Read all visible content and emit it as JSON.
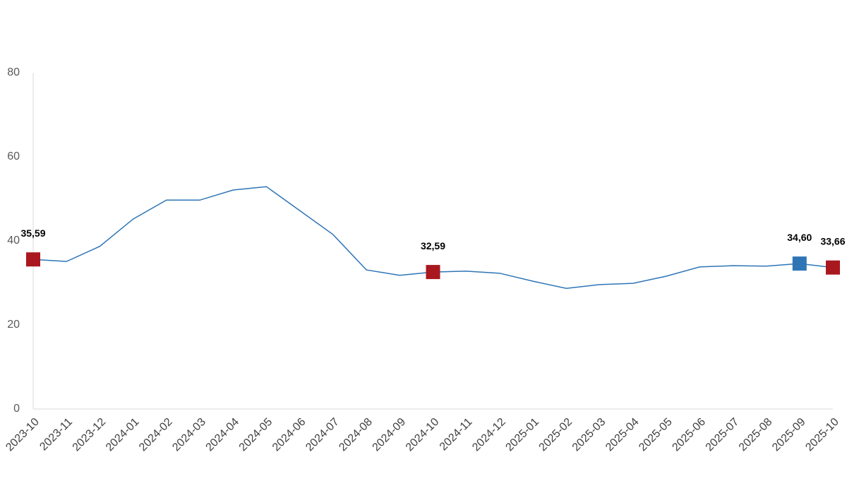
{
  "chart_data": {
    "type": "line",
    "categories": [
      "2023-10",
      "2023-11",
      "2023-12",
      "2024-01",
      "2024-02",
      "2024-03",
      "2024-04",
      "2024-05",
      "2024-06",
      "2024-07",
      "2024-08",
      "2024-09",
      "2024-10",
      "2024-11",
      "2024-12",
      "2025-01",
      "2025-02",
      "2025-03",
      "2025-04",
      "2025-05",
      "2025-06",
      "2025-07",
      "2025-08",
      "2025-09",
      "2025-10"
    ],
    "values": [
      35.59,
      35.1,
      38.7,
      45.2,
      49.7,
      49.7,
      52.1,
      52.9,
      47.2,
      41.5,
      33.1,
      31.8,
      32.59,
      32.8,
      32.3,
      30.4,
      28.7,
      29.6,
      29.9,
      31.6,
      33.8,
      34.1,
      34.0,
      34.6,
      33.66
    ],
    "value_labels": [
      "35,59",
      null,
      null,
      null,
      null,
      null,
      null,
      null,
      null,
      null,
      null,
      null,
      "32,59",
      null,
      null,
      null,
      null,
      null,
      null,
      null,
      null,
      null,
      null,
      "34,60",
      "33,66"
    ],
    "marker_colors": [
      "#a9181f",
      null,
      null,
      null,
      null,
      null,
      null,
      null,
      null,
      null,
      null,
      null,
      "#a9181f",
      null,
      null,
      null,
      null,
      null,
      null,
      null,
      null,
      null,
      null,
      "#2e75b6",
      "#a9181f"
    ],
    "color": "#2e75b6",
    "ylim": [
      0,
      80
    ],
    "yticks": [
      0,
      20,
      40,
      60,
      80
    ],
    "grid": false
  }
}
